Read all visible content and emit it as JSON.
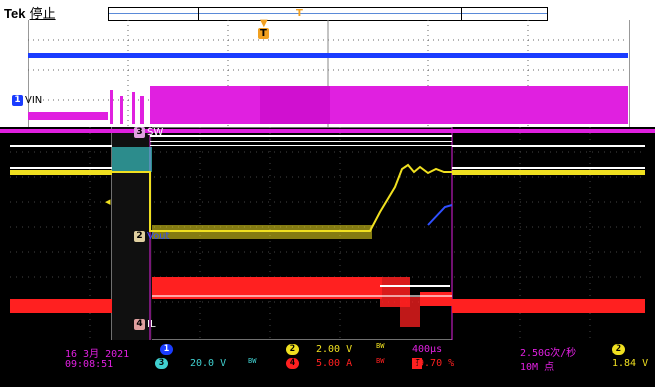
{
  "header": {
    "brand": "Tek",
    "run_state": "停止"
  },
  "channels": {
    "vin": {
      "num": "1",
      "label": "VIN",
      "color": "#1a3cff"
    },
    "sw": {
      "num": "3",
      "label": "SW",
      "color": "#e020e0"
    },
    "vout": {
      "num": "2",
      "label": "Vout",
      "color": "#f0e020"
    },
    "il": {
      "num": "4",
      "label": "IL",
      "color": "#ff2020"
    }
  },
  "status": {
    "date": "16 3月 2021",
    "time": "09:08:51",
    "ch1_num": "1",
    "ch3_num": "3",
    "ch3_scale": "20.0 V",
    "ch2_num": "2",
    "ch2_scale": "2.00 V",
    "ch4_num": "4",
    "ch4_scale": "5.00 A",
    "bw1": "BW",
    "bw2": "BW",
    "bw3": "BW",
    "bw4": "BW",
    "timebase": "400μs",
    "trig_pos": "39.70 %",
    "sample_rate": "2.50G次/秒",
    "record_len": "10M 点",
    "trig_ch": "2",
    "trig_level": "1.84 V"
  }
}
